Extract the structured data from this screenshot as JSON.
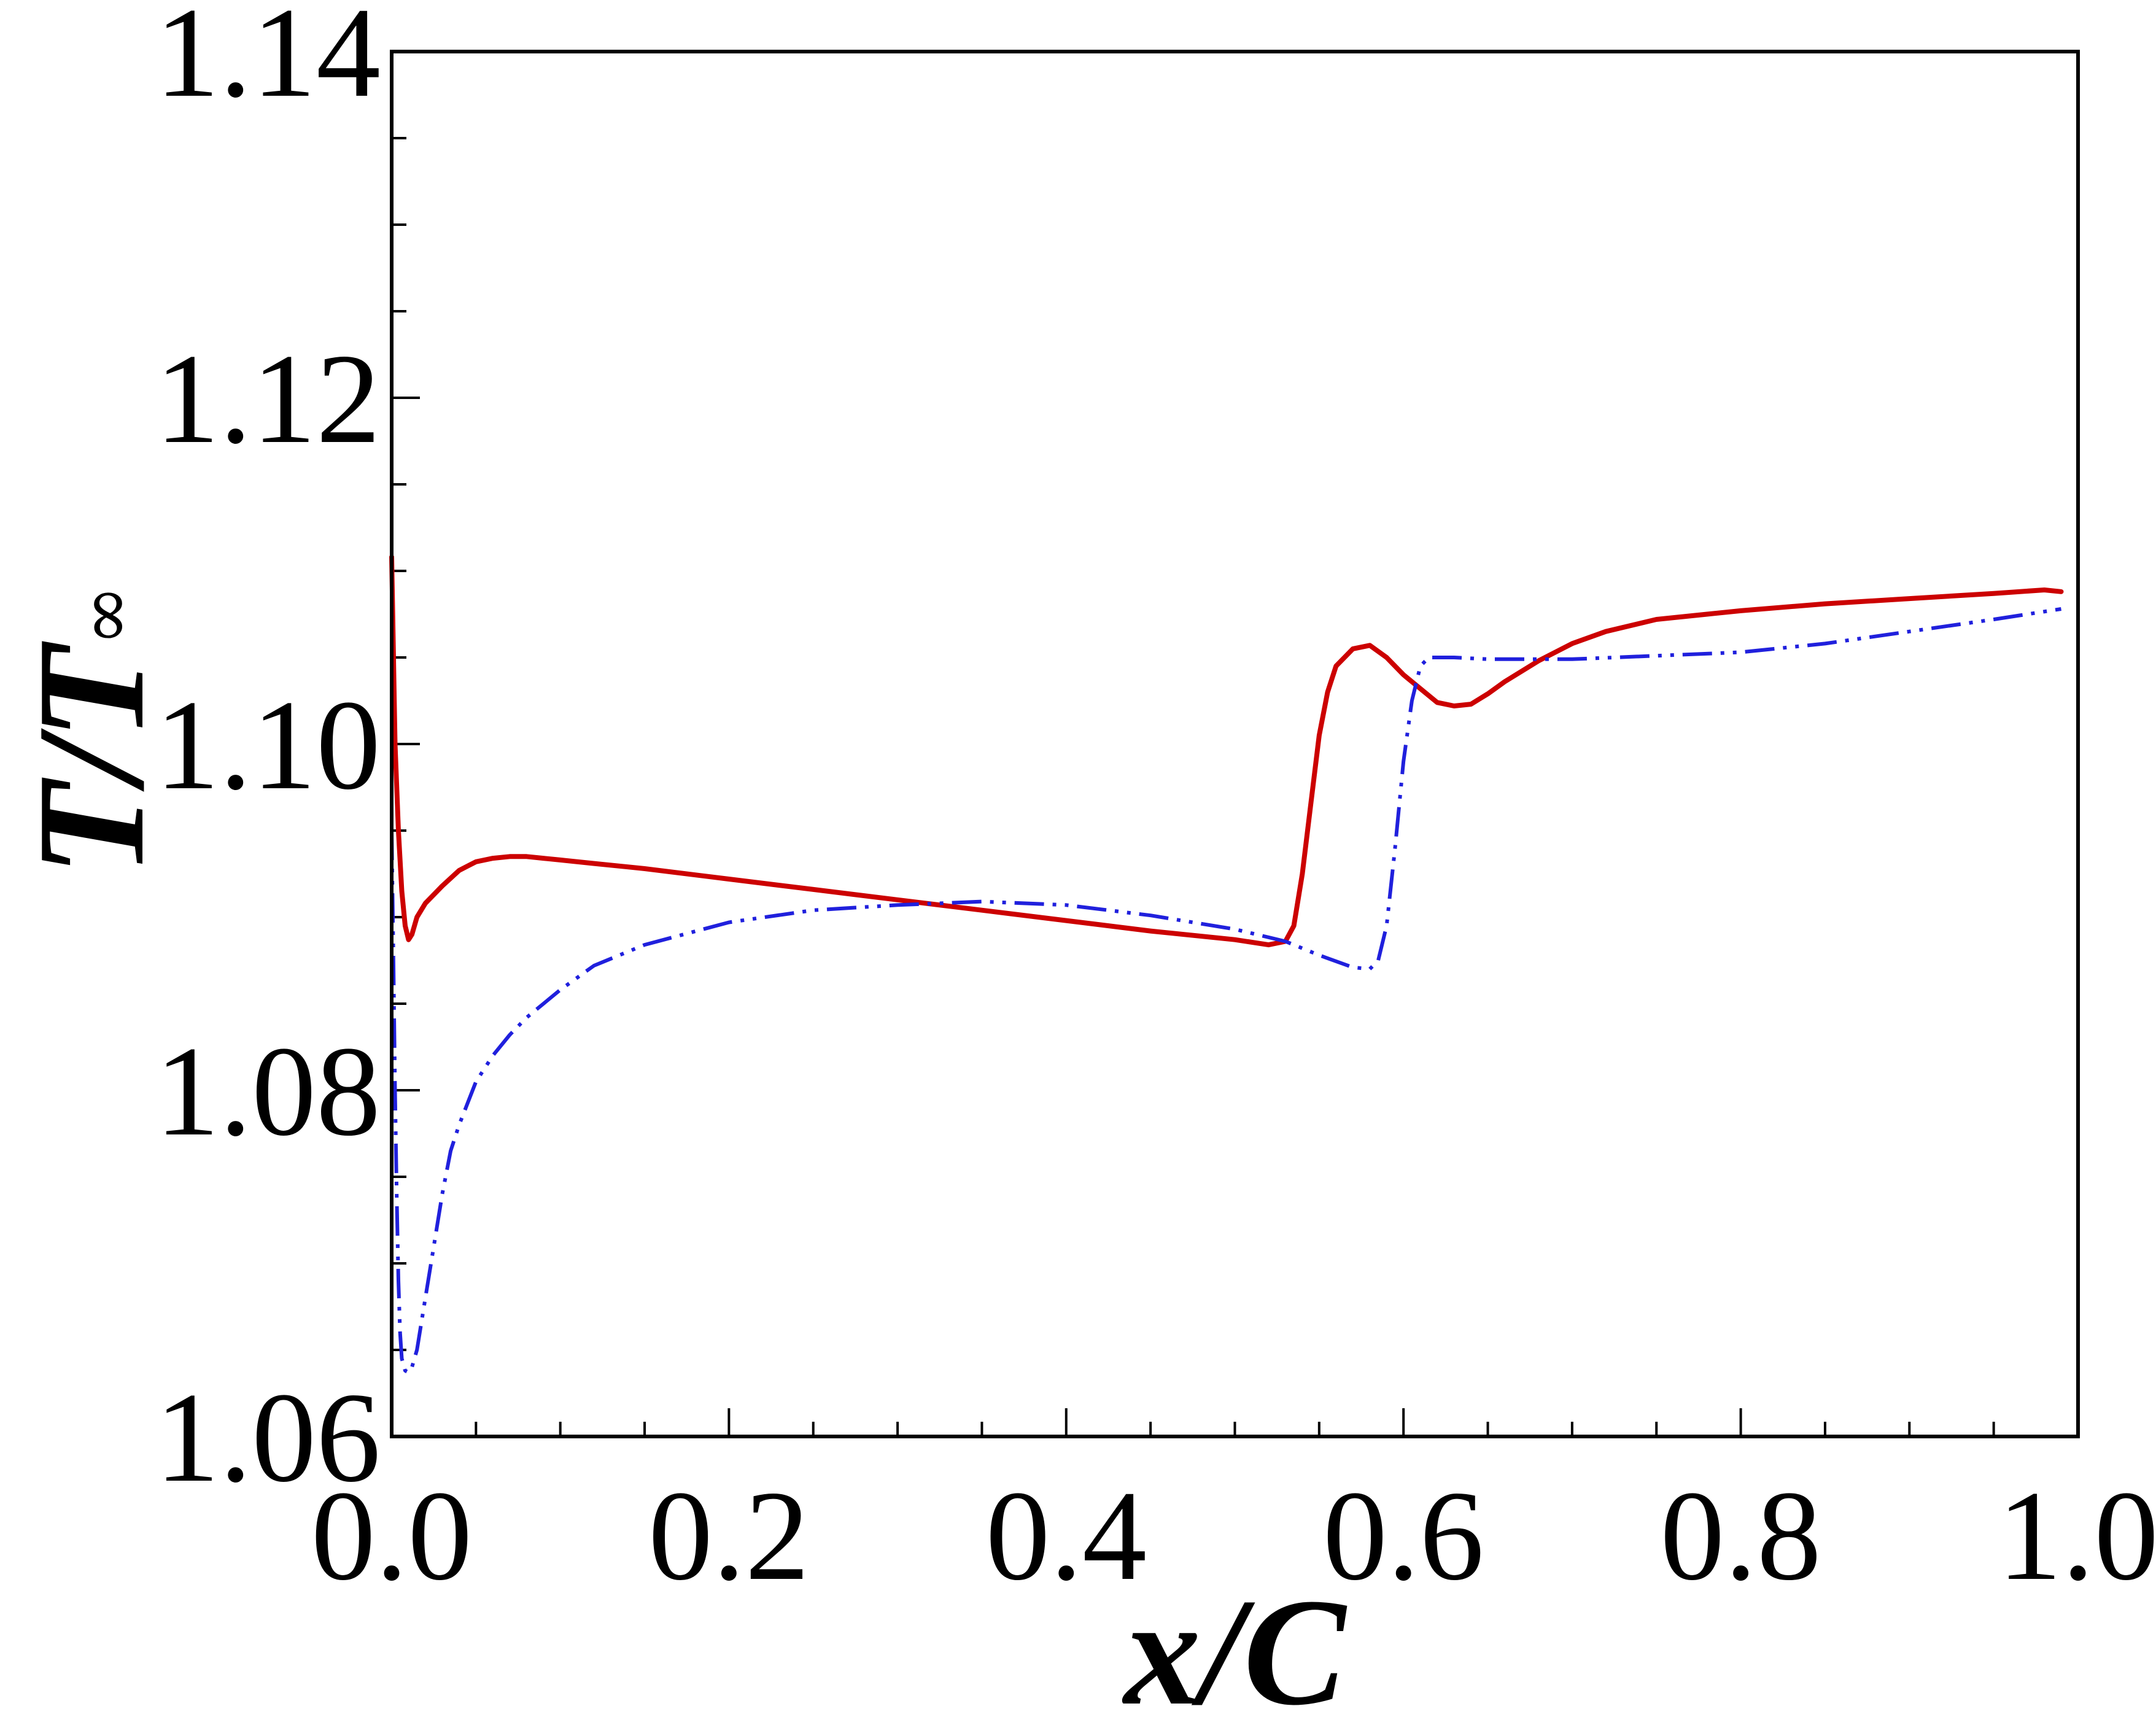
{
  "chart_data": {
    "type": "line",
    "xlabel": "x/C",
    "ylabel": {
      "main": "T/T",
      "sub": "∞"
    },
    "xlim": [
      0.0,
      1.0
    ],
    "ylim": [
      1.06,
      1.14
    ],
    "xticks": [
      "0.0",
      "0.2",
      "0.4",
      "0.6",
      "0.8",
      "1.0"
    ],
    "yticks": [
      "1.06",
      "1.08",
      "1.10",
      "1.12",
      "1.14"
    ],
    "grid": false,
    "legend": "none",
    "series": [
      {
        "color": "#cc0000",
        "style": "solid",
        "x": [
          0.0,
          0.002,
          0.004,
          0.006,
          0.008,
          0.01,
          0.012,
          0.015,
          0.02,
          0.03,
          0.04,
          0.05,
          0.06,
          0.07,
          0.08,
          0.09,
          0.1,
          0.12,
          0.15,
          0.2,
          0.25,
          0.3,
          0.35,
          0.4,
          0.45,
          0.5,
          0.52,
          0.53,
          0.535,
          0.54,
          0.545,
          0.55,
          0.555,
          0.56,
          0.57,
          0.58,
          0.59,
          0.6,
          0.62,
          0.63,
          0.64,
          0.65,
          0.66,
          0.68,
          0.7,
          0.72,
          0.75,
          0.78,
          0.8,
          0.85,
          0.9,
          0.95,
          0.98,
          0.99
        ],
        "y": [
          1.1108,
          1.1,
          1.095,
          1.0915,
          1.0895,
          1.0887,
          1.089,
          1.09,
          1.0908,
          1.0918,
          1.0927,
          1.0932,
          1.0934,
          1.0935,
          1.0935,
          1.0934,
          1.0933,
          1.0931,
          1.0928,
          1.0922,
          1.0916,
          1.091,
          1.0904,
          1.0898,
          1.0892,
          1.0887,
          1.0884,
          1.0886,
          1.0895,
          1.0925,
          1.0965,
          1.1005,
          1.103,
          1.1045,
          1.1055,
          1.1057,
          1.105,
          1.104,
          1.1024,
          1.1022,
          1.1023,
          1.1029,
          1.1036,
          1.1048,
          1.1058,
          1.1065,
          1.1072,
          1.1075,
          1.1077,
          1.1081,
          1.1084,
          1.1087,
          1.1089,
          1.1088
        ]
      },
      {
        "color": "#2020dd",
        "style": "dash-dot-dot",
        "x": [
          0.0,
          0.001,
          0.002,
          0.003,
          0.004,
          0.005,
          0.006,
          0.008,
          0.01,
          0.012,
          0.015,
          0.02,
          0.025,
          0.03,
          0.035,
          0.04,
          0.05,
          0.06,
          0.07,
          0.08,
          0.1,
          0.12,
          0.15,
          0.2,
          0.25,
          0.3,
          0.35,
          0.4,
          0.45,
          0.5,
          0.53,
          0.55,
          0.57,
          0.58,
          0.585,
          0.59,
          0.595,
          0.6,
          0.605,
          0.61,
          0.615,
          0.62,
          0.63,
          0.65,
          0.7,
          0.75,
          0.8,
          0.85,
          0.9,
          0.95,
          0.99
        ],
        "y": [
          1.095,
          1.088,
          1.08,
          1.074,
          1.069,
          1.066,
          1.0645,
          1.0638,
          1.0637,
          1.064,
          1.065,
          1.068,
          1.071,
          1.074,
          1.0765,
          1.078,
          1.0805,
          1.082,
          1.0832,
          1.0842,
          1.0858,
          1.0872,
          1.0884,
          1.0897,
          1.0904,
          1.0907,
          1.0909,
          1.0907,
          1.0901,
          1.0893,
          1.0886,
          1.0878,
          1.0871,
          1.087,
          1.0875,
          1.0895,
          1.094,
          1.099,
          1.1025,
          1.1045,
          1.105,
          1.105,
          1.105,
          1.1049,
          1.1049,
          1.1051,
          1.1053,
          1.1058,
          1.1065,
          1.1072,
          1.1078
        ]
      }
    ]
  }
}
